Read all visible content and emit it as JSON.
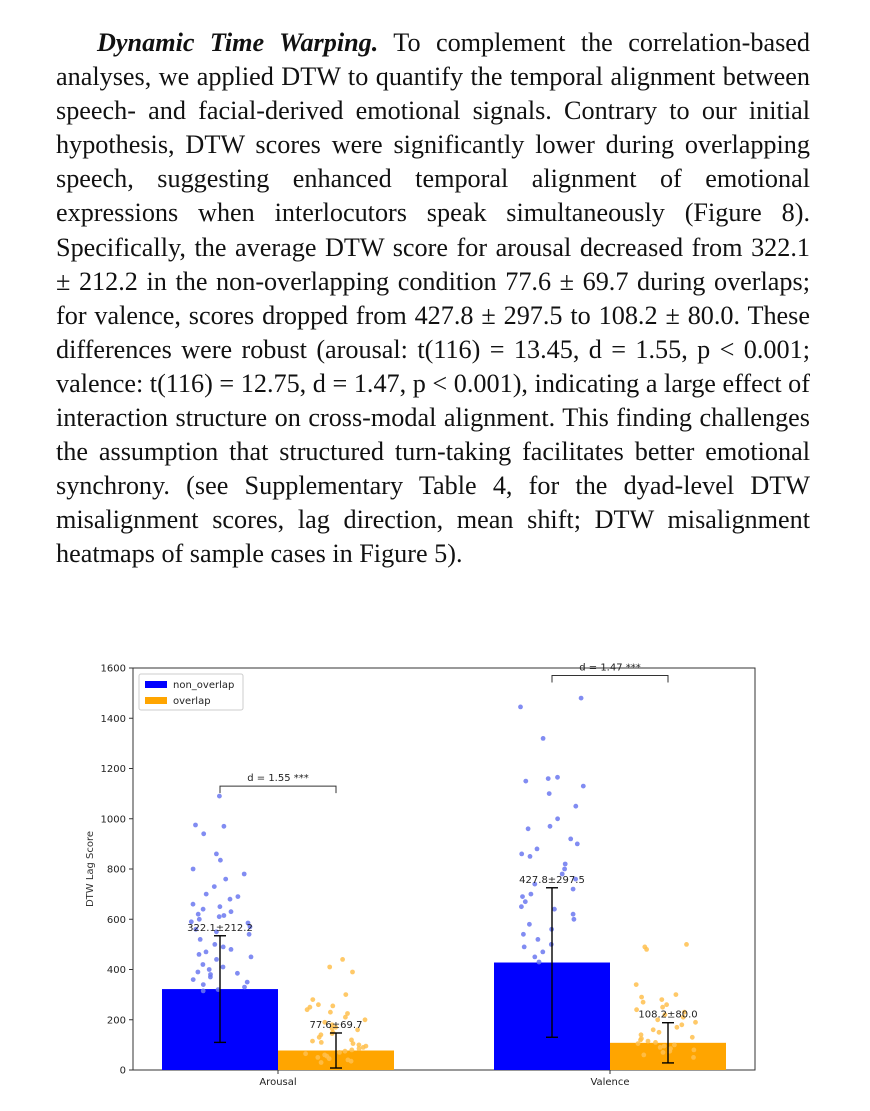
{
  "paragraph": {
    "runin": "Dynamic Time Warping.",
    "text": " To complement the correlation-based analyses, we applied DTW to quantify the temporal alignment between speech- and facial-derived emotional signals. Contrary to our initial hypothesis, DTW scores were significantly lower during overlapping speech, suggesting enhanced temporal alignment of emotional expressions when interlocutors speak simultaneously (Figure 8). Specifically, the average DTW score for arousal decreased from 322.1 ± 212.2 in the non-overlapping condition 77.6 ± 69.7 during overlaps; for valence, scores dropped from 427.8 ± 297.5 to 108.2 ± 80.0. These differences were robust (arousal: t(116) = 13.45, d = 1.55, p < 0.001; valence: t(116) = 12.75, d = 1.47, p < 0.001), indicating a large effect of interaction structure on cross-modal alignment. This finding challenges the assumption that structured turn-taking facilitates better emotional synchrony. (see Supplementary Table 4, for the dyad-level DTW misalignment scores, lag direction, mean shift; DTW misalignment heatmaps of sample cases in Figure 5)."
  },
  "chart_data": {
    "type": "bar",
    "categories": [
      "Arousal",
      "Valence"
    ],
    "ylabel": "DTW Lag Score",
    "xlabel": "",
    "ylim": [
      0,
      1600
    ],
    "yticks": [
      0,
      200,
      400,
      600,
      800,
      1000,
      1200,
      1400,
      1600
    ],
    "legend_position": "top-left",
    "grid": false,
    "series": [
      {
        "name": "non_overlap",
        "color": "#0000ff",
        "point_color": "#6b78f0",
        "values": [
          322.1,
          427.8
        ],
        "sd": [
          212.2,
          297.5
        ],
        "labels": [
          "322.1±212.2",
          "427.8±297.5"
        ]
      },
      {
        "name": "overlap",
        "color": "#ffa500",
        "point_color": "#ffbf4d",
        "values": [
          77.6,
          108.2
        ],
        "sd": [
          69.7,
          80.0
        ],
        "labels": [
          "77.6±69.7",
          "108.2±80.0"
        ]
      }
    ],
    "annotations": [
      {
        "category": "Arousal",
        "text": "d = 1.55 ***",
        "y": 1130
      },
      {
        "category": "Valence",
        "text": "d = 1.47 ***",
        "y": 1570
      }
    ],
    "points": {
      "Arousal": {
        "non_overlap": [
          1090,
          970,
          975,
          940,
          860,
          835,
          800,
          780,
          760,
          730,
          700,
          690,
          680,
          660,
          650,
          640,
          630,
          620,
          615,
          610,
          600,
          590,
          585,
          570,
          560,
          550,
          540,
          520,
          500,
          490,
          480,
          470,
          460,
          450,
          440,
          420,
          410,
          400,
          390,
          385,
          380,
          370,
          360,
          350,
          340,
          330,
          320,
          315
        ],
        "overlap": [
          440,
          410,
          390,
          300,
          280,
          260,
          255,
          250,
          240,
          230,
          225,
          210,
          200,
          190,
          180,
          170,
          165,
          160,
          150,
          145,
          140,
          130,
          120,
          115,
          110,
          105,
          100,
          95,
          90,
          85,
          80,
          75,
          70,
          65,
          60,
          55,
          50,
          45,
          40,
          35,
          30
        ]
      },
      "Valence": {
        "non_overlap": [
          1480,
          1445,
          1320,
          1165,
          1160,
          1150,
          1130,
          1100,
          1050,
          1000,
          970,
          960,
          920,
          900,
          880,
          860,
          850,
          820,
          800,
          780,
          760,
          740,
          720,
          700,
          690,
          670,
          650,
          640,
          620,
          600,
          580,
          560,
          540,
          520,
          500,
          490,
          470,
          450,
          430
        ],
        "overlap": [
          500,
          490,
          480,
          340,
          300,
          290,
          280,
          270,
          260,
          250,
          240,
          230,
          220,
          210,
          200,
          190,
          180,
          170,
          160,
          150,
          140,
          130,
          125,
          120,
          115,
          110,
          105,
          100,
          95,
          90,
          85,
          80,
          75,
          70,
          60,
          50
        ]
      }
    }
  }
}
